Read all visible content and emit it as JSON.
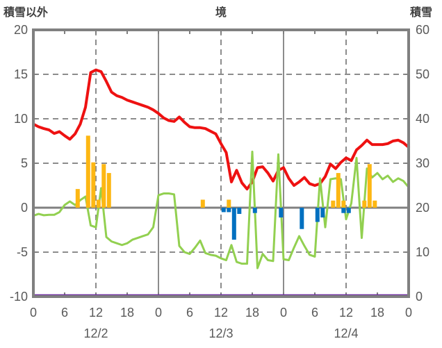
{
  "header": {
    "left_axis_title": "積雪以外",
    "chart_title": "境",
    "right_axis_title": "積雪"
  },
  "colors": {
    "frame": "#808080",
    "gridline": "#8c8c8c",
    "zero_line": "#808080",
    "tick_text": "#595959",
    "title_text": "#3f3f3f",
    "red_line": "#ee1111",
    "green_line": "#92d050",
    "orange_bar": "#fdb713",
    "blue_bar": "#0070c0",
    "purple_line": "#7030a0"
  },
  "chart_data": {
    "type": "line+bar",
    "title": "境",
    "left_axis": {
      "title": "積雪以外",
      "range": [
        -10,
        20
      ],
      "ticks": [
        20,
        15,
        10,
        5,
        0,
        -5,
        -10
      ]
    },
    "right_axis": {
      "title": "積雪",
      "range": [
        0,
        60
      ],
      "ticks": [
        60,
        50,
        40,
        30,
        20,
        10,
        0
      ]
    },
    "x_axis": {
      "unit": "hour",
      "range_hours": [
        0,
        72
      ],
      "tick_hours": [
        0,
        6,
        12,
        18,
        24,
        30,
        36,
        42,
        48,
        54,
        60,
        66,
        72
      ],
      "tick_labels": [
        "0",
        "6",
        "12",
        "18",
        "0",
        "6",
        "12",
        "18",
        "0",
        "6",
        "12",
        "18",
        "0"
      ],
      "date_labels": [
        {
          "label": "12/2",
          "hour": 12
        },
        {
          "label": "12/3",
          "hour": 36
        },
        {
          "label": "12/4",
          "hour": 60
        }
      ]
    },
    "gridlines": {
      "vertical_dashed_hours": [
        12,
        36,
        60
      ],
      "vertical_solid_hours": [
        24,
        48
      ],
      "horizontal_dashed_values": [
        15,
        10,
        5,
        -5
      ],
      "zero_line_value": 0
    },
    "series": [
      {
        "name": "red_line",
        "type": "line",
        "axis": "left",
        "color": "#ee1111",
        "stroke_width": 4,
        "start_hour": 0,
        "step_hours": 1,
        "values": [
          9.4,
          9.1,
          8.9,
          8.75,
          8.35,
          8.55,
          8.1,
          7.7,
          8.3,
          9.4,
          11.3,
          15.2,
          15.5,
          15.3,
          14.2,
          13.0,
          12.6,
          12.4,
          12.1,
          11.9,
          11.7,
          11.5,
          11.3,
          11.0,
          10.6,
          10.1,
          9.8,
          9.7,
          10.2,
          9.6,
          9.1,
          9.0,
          9.0,
          8.9,
          8.6,
          8.3,
          7.2,
          6.2,
          2.9,
          4.2,
          2.8,
          2.1,
          2.9,
          4.5,
          4.6,
          3.9,
          3.0,
          4.2,
          4.5,
          3.3,
          2.5,
          2.9,
          3.4,
          2.7,
          2.5,
          2.7,
          3.5,
          4.9,
          4.4,
          5.1,
          5.6,
          5.3,
          6.5,
          7.0,
          7.6,
          7.1,
          7.1,
          7.1,
          7.2,
          7.5,
          7.6,
          7.3,
          6.8
        ]
      },
      {
        "name": "green_line",
        "type": "line",
        "axis": "left",
        "color": "#92d050",
        "stroke_width": 3,
        "start_hour": 0,
        "step_hours": 1,
        "values": [
          -0.9,
          -0.7,
          -0.85,
          -0.8,
          -0.8,
          -0.5,
          0.3,
          0.7,
          0.3,
          0.85,
          1.25,
          -2.0,
          -2.2,
          2.2,
          -3.3,
          -3.8,
          -4.0,
          -4.2,
          -4.0,
          -3.6,
          -3.4,
          -3.2,
          -3.0,
          -2.2,
          1.4,
          1.6,
          1.6,
          1.5,
          -4.3,
          -5.0,
          -5.2,
          -4.5,
          -3.7,
          -5.1,
          -5.3,
          -5.4,
          -5.7,
          -5.9,
          -4.2,
          -6.1,
          -6.3,
          -6.3,
          6.3,
          -6.8,
          -5.2,
          -5.9,
          -6.0,
          6.0,
          -5.8,
          -5.9,
          -4.5,
          -3.2,
          -4.3,
          -5.3,
          -5.5,
          3.3,
          -2.2,
          3.2,
          3.3,
          3.2,
          -1.3,
          0.5,
          5.6,
          -3.4,
          4.4,
          3.4,
          3.9,
          3.2,
          3.6,
          2.9,
          3.3,
          3.0,
          2.3
        ]
      },
      {
        "name": "orange_bars",
        "type": "bar",
        "axis": "left",
        "color": "#fdb713",
        "points": [
          {
            "hour": 8,
            "value": 2.1
          },
          {
            "hour": 10,
            "value": 8.1
          },
          {
            "hour": 11,
            "value": 5.1
          },
          {
            "hour": 12,
            "value": 0.9
          },
          {
            "hour": 13,
            "value": 4.9
          },
          {
            "hour": 14,
            "value": 3.9
          },
          {
            "hour": 32,
            "value": 0.9
          },
          {
            "hour": 37,
            "value": 0.9
          },
          {
            "hour": 57,
            "value": 0.8
          },
          {
            "hour": 58,
            "value": 3.9
          },
          {
            "hour": 59,
            "value": 0.8
          },
          {
            "hour": 63,
            "value": 0.8
          },
          {
            "hour": 64,
            "value": 4.9
          },
          {
            "hour": 65,
            "value": 0.8
          }
        ]
      },
      {
        "name": "blue_bars",
        "type": "bar",
        "axis": "left",
        "color": "#0070c0",
        "points": [
          {
            "hour": 36,
            "value": -0.5
          },
          {
            "hour": 37,
            "value": -0.5
          },
          {
            "hour": 38,
            "value": -3.6
          },
          {
            "hour": 39,
            "value": -0.7
          },
          {
            "hour": 42,
            "value": -0.6
          },
          {
            "hour": 47,
            "value": -1.1
          },
          {
            "hour": 51,
            "value": -2.4
          },
          {
            "hour": 54,
            "value": -1.6
          },
          {
            "hour": 55,
            "value": -1.1
          },
          {
            "hour": 59,
            "value": -0.6
          },
          {
            "hour": 60,
            "value": -0.6
          }
        ]
      },
      {
        "name": "purple_line",
        "type": "flat-line",
        "axis": "left",
        "color": "#7030a0",
        "stroke_width": 3,
        "start_hour": 0,
        "end_hour": 72,
        "value": -9.85
      }
    ]
  }
}
